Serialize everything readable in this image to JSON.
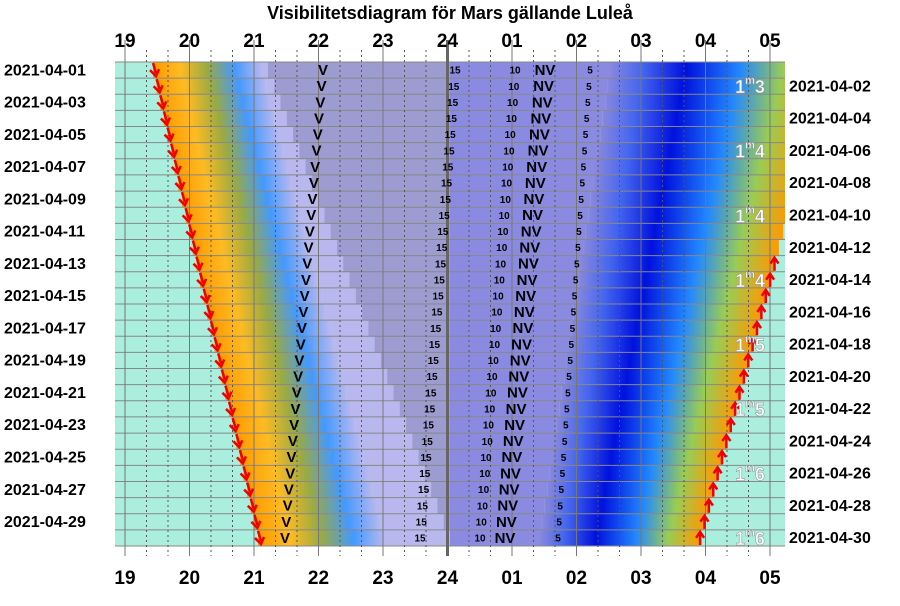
{
  "title": "Visibilitetsdiagram för Mars gällande Luleå",
  "hours": [
    "19",
    "20",
    "21",
    "22",
    "23",
    "24",
    "01",
    "02",
    "03",
    "04",
    "05"
  ],
  "dates_left": [
    "2021-04-01",
    "2021-04-03",
    "2021-04-05",
    "2021-04-07",
    "2021-04-09",
    "2021-04-11",
    "2021-04-13",
    "2021-04-15",
    "2021-04-17",
    "2021-04-19",
    "2021-04-21",
    "2021-04-23",
    "2021-04-25",
    "2021-04-27",
    "2021-04-29"
  ],
  "dates_right": [
    "2021-04-02",
    "2021-04-04",
    "2021-04-06",
    "2021-04-08",
    "2021-04-10",
    "2021-04-12",
    "2021-04-14",
    "2021-04-16",
    "2021-04-18",
    "2021-04-20",
    "2021-04-22",
    "2021-04-24",
    "2021-04-26",
    "2021-04-28",
    "2021-04-30"
  ],
  "row_labels": {
    "visible": "V",
    "not_visible": "NV",
    "altitudes": [
      "15",
      "10",
      "5"
    ]
  },
  "magnitudes": [
    {
      "int": "1",
      "unit": "m",
      "dec": "3"
    },
    {
      "int": "1",
      "unit": "m",
      "dec": "4"
    },
    {
      "int": "1",
      "unit": "m",
      "dec": "4"
    },
    {
      "int": "1",
      "unit": "m",
      "dec": "4"
    },
    {
      "int": "1",
      "unit": "m",
      "dec": "5"
    },
    {
      "int": "1",
      "unit": "m",
      "dec": "5"
    },
    {
      "int": "1",
      "unit": "m",
      "dec": "6"
    },
    {
      "int": "1",
      "unit": "m",
      "dec": "6"
    }
  ]
}
